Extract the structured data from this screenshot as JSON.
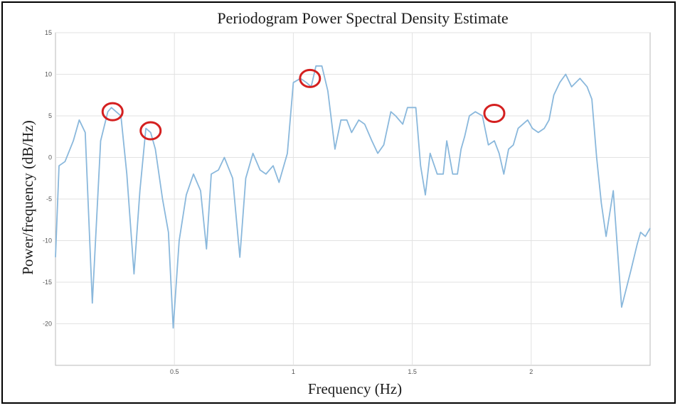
{
  "chart_data": {
    "type": "line",
    "title": "Periodogram Power Spectral Density Estimate",
    "xlabel": "Frequency (Hz)",
    "ylabel": "Power/frequency (dB/Hz)",
    "xlim": [
      0,
      2.5
    ],
    "ylim": [
      -25,
      15
    ],
    "xticks": [
      0.5,
      1,
      1.5,
      2
    ],
    "xtick_labels": [
      "0.5",
      "1",
      "1.5",
      "2"
    ],
    "yticks": [
      15,
      10,
      5,
      0,
      -5,
      -10,
      -15,
      -20
    ],
    "ytick_labels": [
      "15",
      "10",
      "5",
      "0",
      "-5",
      "-10",
      "-15",
      "-20"
    ],
    "grid": true,
    "line_color": "#8ab8dc",
    "highlight_color": "#d42020",
    "series": [
      {
        "x": [
          0.0,
          0.015,
          0.04,
          0.075,
          0.1,
          0.125,
          0.155,
          0.19,
          0.22,
          0.235,
          0.255,
          0.275,
          0.3,
          0.33,
          0.355,
          0.38,
          0.4,
          0.42,
          0.45,
          0.475,
          0.495,
          0.52,
          0.55,
          0.58,
          0.61,
          0.635,
          0.655,
          0.685,
          0.71,
          0.745,
          0.775,
          0.8,
          0.83,
          0.86,
          0.885,
          0.915,
          0.94,
          0.975,
          1.0,
          1.03,
          1.055,
          1.075,
          1.095,
          1.12,
          1.145,
          1.175,
          1.2,
          1.225,
          1.245,
          1.275,
          1.3,
          1.33,
          1.355,
          1.38,
          1.41,
          1.43,
          1.46,
          1.48,
          1.515,
          1.535,
          1.555,
          1.575,
          1.605,
          1.63,
          1.645,
          1.67,
          1.69,
          1.705,
          1.72,
          1.74,
          1.765,
          1.795,
          1.82,
          1.845,
          1.865,
          1.885,
          1.905,
          1.925,
          1.945,
          1.965,
          1.985,
          2.005,
          2.03,
          2.055,
          2.075,
          2.095,
          2.12,
          2.145,
          2.17,
          2.205,
          2.235,
          2.255,
          2.275,
          2.295,
          2.315,
          2.345,
          2.38,
          2.42,
          2.445,
          2.46,
          2.48,
          2.5
        ],
        "y": [
          -12,
          -1,
          -0.5,
          2,
          4.5,
          3,
          -17.5,
          2,
          5.5,
          6,
          5.5,
          5,
          -2,
          -14,
          -4,
          3.5,
          3,
          1,
          -5,
          -9,
          -20.5,
          -10,
          -4.5,
          -2,
          -4,
          -11,
          -2,
          -1.5,
          0,
          -2.5,
          -12,
          -2.5,
          0.5,
          -1.5,
          -2,
          -1,
          -3,
          0.5,
          9,
          9.5,
          9,
          8.5,
          11,
          11,
          8,
          1,
          4.5,
          4.5,
          3,
          4.5,
          4,
          2,
          0.5,
          1.5,
          5.5,
          5,
          4,
          6,
          6,
          -1,
          -4.5,
          0.5,
          -2,
          -2,
          2,
          -2,
          -2,
          1,
          2.5,
          5,
          5.5,
          5,
          1.5,
          2,
          0.5,
          -2,
          1,
          1.5,
          3.5,
          4,
          4.5,
          3.5,
          3,
          3.5,
          4.5,
          7.5,
          9,
          10,
          8.5,
          9.5,
          8.5,
          7,
          0,
          -5.5,
          -9.5,
          -4,
          -18,
          -13.5,
          -10.5,
          -9,
          -9.5,
          -8.5
        ]
      }
    ],
    "highlighted_peaks": [
      {
        "x": 0.24,
        "y": 5.5
      },
      {
        "x": 0.4,
        "y": 3.2
      },
      {
        "x": 1.07,
        "y": 9.5
      },
      {
        "x": 1.845,
        "y": 5.3
      }
    ]
  }
}
